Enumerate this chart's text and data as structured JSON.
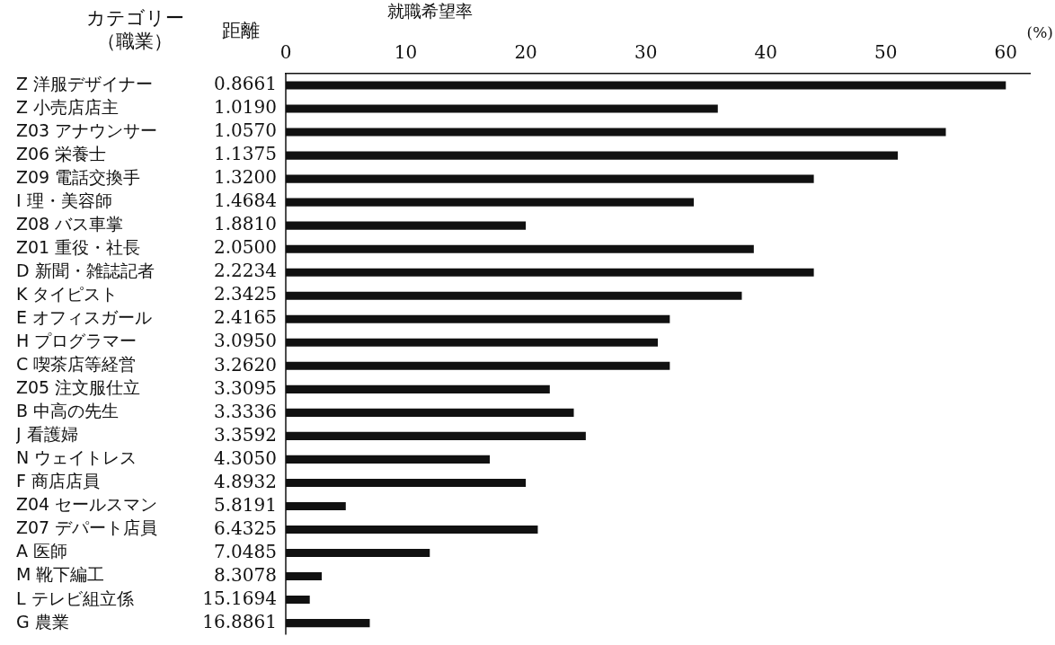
{
  "chart_data": {
    "type": "bar",
    "orientation": "horizontal",
    "title": "就職希望率",
    "xlabel": "(%)",
    "categories": [
      "Z 洋服デザイナー",
      "Z 小売店店主",
      "Z03 アナウンサー",
      "Z06 栄養士",
      "Z09 電話交換手",
      "I 理・美容師",
      "Z08 バス車掌",
      "Z01 重役・社長",
      "D 新聞・雑誌記者",
      "K タイピスト",
      "E オフィスガール",
      "H プログラマー",
      "C 喫茶店等経営",
      "Z05 注文服仕立",
      "B 中高の先生",
      "J 看護婦",
      "N ウェイトレス",
      "F 商店店員",
      "Z04 セールスマン",
      "Z07 デパート店員",
      "A 医師",
      "M 靴下編工",
      "L テレビ組立係",
      "G 農業"
    ],
    "y2_categories": [
      "0.8661",
      "1.0190",
      "1.0570",
      "1.1375",
      "1.3200",
      "1.4684",
      "1.8810",
      "2.0500",
      "2.2234",
      "2.3425",
      "2.4165",
      "3.0950",
      "3.2620",
      "3.3095",
      "3.3336",
      "3.3592",
      "4.3050",
      "4.8932",
      "5.8191",
      "6.4325",
      "7.0485",
      "8.3078",
      "15.1694",
      "16.8861"
    ],
    "values": [
      60,
      36,
      55,
      51,
      44,
      34,
      20,
      39,
      44,
      38,
      32,
      31,
      32,
      22,
      24,
      25,
      17,
      20,
      5,
      21,
      12,
      3,
      2,
      7
    ],
    "color": "#111111",
    "xlim": [
      0,
      62
    ],
    "xticks": [
      0,
      10,
      20,
      30,
      40,
      50,
      60
    ],
    "annotations": [
      "カテゴリー",
      "（職業）",
      "距離"
    ],
    "grid": false,
    "legend": false
  }
}
